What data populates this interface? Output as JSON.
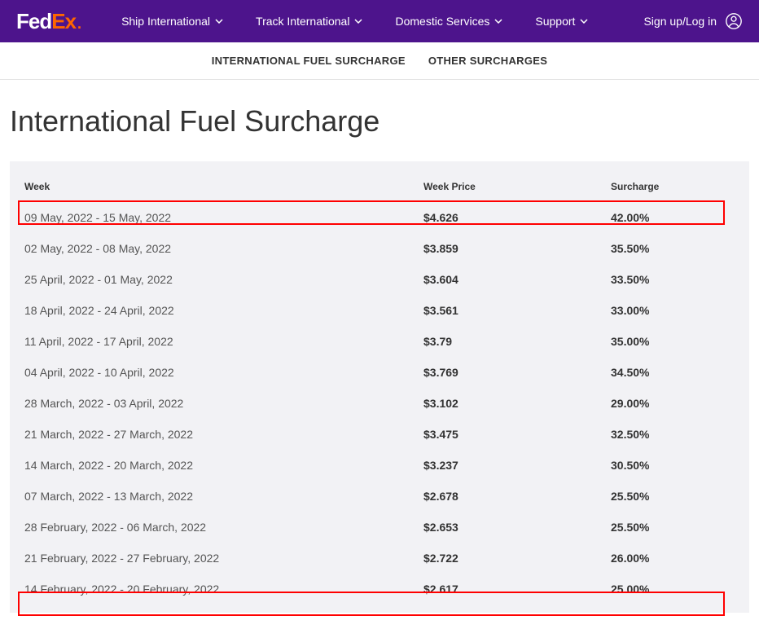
{
  "logo": {
    "fed": "Fed",
    "ex": "Ex",
    "dot": "."
  },
  "nav": {
    "items": [
      {
        "label": "Ship International"
      },
      {
        "label": "Track International"
      },
      {
        "label": "Domestic Services"
      },
      {
        "label": "Support"
      }
    ],
    "signin": "Sign up/Log in"
  },
  "subnav": {
    "items": [
      {
        "label": "INTERNATIONAL FUEL SURCHARGE"
      },
      {
        "label": "OTHER SURCHARGES"
      }
    ]
  },
  "page": {
    "title": "International Fuel Surcharge"
  },
  "table": {
    "headers": {
      "week": "Week",
      "price": "Week Price",
      "surcharge": "Surcharge"
    },
    "rows": [
      {
        "week": "09 May, 2022 - 15 May, 2022",
        "price": "$4.626",
        "surcharge": "42.00%"
      },
      {
        "week": "02 May, 2022 - 08 May, 2022",
        "price": "$3.859",
        "surcharge": "35.50%"
      },
      {
        "week": "25 April, 2022 - 01 May, 2022",
        "price": "$3.604",
        "surcharge": "33.50%"
      },
      {
        "week": "18 April, 2022 - 24 April, 2022",
        "price": "$3.561",
        "surcharge": "33.00%"
      },
      {
        "week": "11 April, 2022 - 17 April, 2022",
        "price": "$3.79",
        "surcharge": "35.00%"
      },
      {
        "week": "04 April, 2022 - 10 April, 2022",
        "price": "$3.769",
        "surcharge": "34.50%"
      },
      {
        "week": "28 March, 2022 - 03 April, 2022",
        "price": "$3.102",
        "surcharge": "29.00%"
      },
      {
        "week": "21 March, 2022 - 27 March, 2022",
        "price": "$3.475",
        "surcharge": "32.50%"
      },
      {
        "week": "14 March, 2022 - 20 March, 2022",
        "price": "$3.237",
        "surcharge": "30.50%"
      },
      {
        "week": "07 March, 2022 - 13 March, 2022",
        "price": "$2.678",
        "surcharge": "25.50%"
      },
      {
        "week": "28 February, 2022 - 06 March, 2022",
        "price": "$2.653",
        "surcharge": "25.50%"
      },
      {
        "week": "21 February, 2022 - 27 February, 2022",
        "price": "$2.722",
        "surcharge": "26.00%"
      },
      {
        "week": "14 February, 2022 - 20 February, 2022",
        "price": "$2.617",
        "surcharge": "25.00%"
      }
    ]
  },
  "highlights": {
    "row_indices": [
      0,
      12
    ],
    "border_color": "#ff0000"
  },
  "colors": {
    "header_bg": "#4d148c",
    "accent": "#ff6600",
    "table_bg": "#f2f2f5",
    "text": "#333333"
  }
}
